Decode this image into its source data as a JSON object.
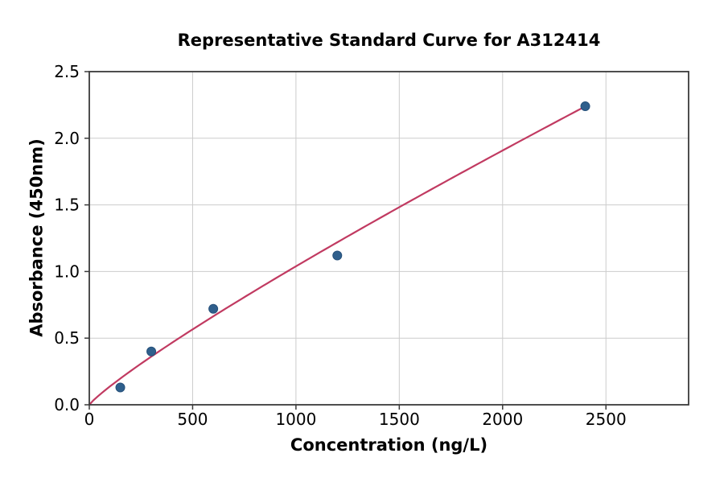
{
  "chart_data": {
    "type": "scatter",
    "title": "Representative Standard Curve for A312414",
    "xlabel": "Concentration (ng/L)",
    "ylabel": "Absorbance (450nm)",
    "xlim": [
      0,
      2900
    ],
    "ylim": [
      0,
      2.5
    ],
    "x_ticks": [
      0,
      500,
      1000,
      1500,
      2000,
      2500
    ],
    "y_ticks": [
      0.0,
      0.5,
      1.0,
      1.5,
      2.0,
      2.5
    ],
    "grid": true,
    "legend": "none",
    "points": [
      {
        "x": 150,
        "y": 0.13
      },
      {
        "x": 300,
        "y": 0.4
      },
      {
        "x": 600,
        "y": 0.72
      },
      {
        "x": 1200,
        "y": 1.12
      },
      {
        "x": 2400,
        "y": 2.24
      }
    ],
    "fit_curve": {
      "type": "power",
      "equation": "y = 0.00243 * x^0.877",
      "a": 0.00243,
      "b": 0.877,
      "x_range": [
        0,
        2400
      ]
    },
    "colors": {
      "curve": "#c13a61",
      "point_fill": "#2f5f8c",
      "point_edge": "#26507a",
      "grid": "#cccccc",
      "axis": "#3a3a3a",
      "text": "#000000",
      "background": "#ffffff"
    }
  }
}
